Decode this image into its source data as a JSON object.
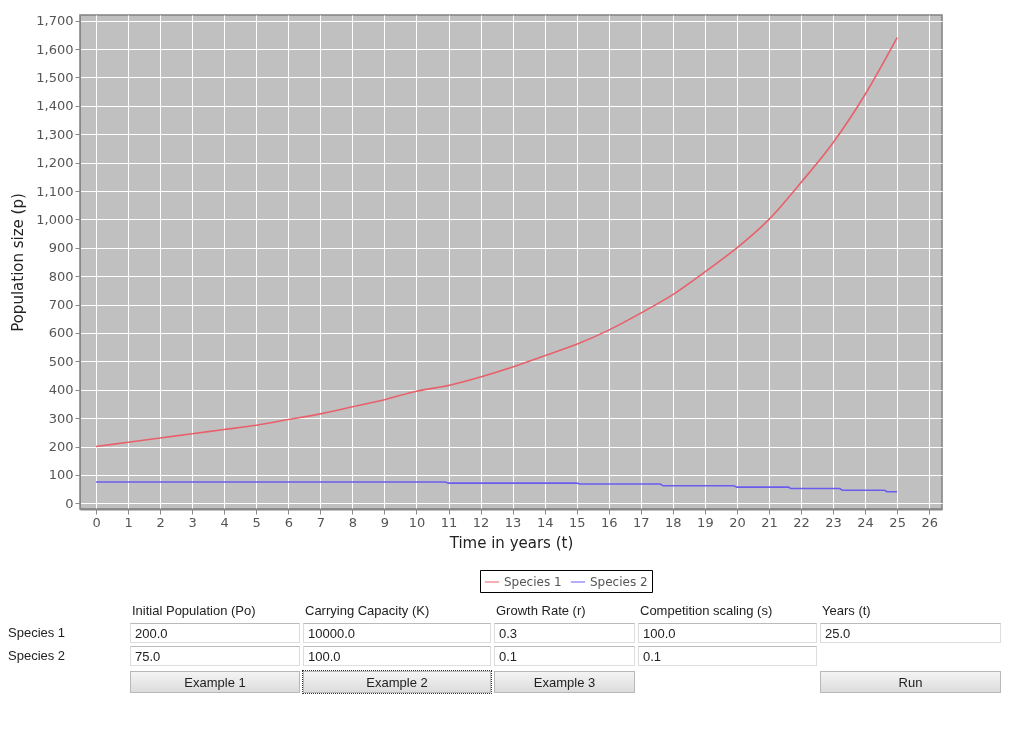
{
  "chart_data": [
    {
      "type": "line",
      "xlabel": "Time in years (t)",
      "ylabel": "Population size (p)",
      "xlim": [
        -0.5,
        26.4
      ],
      "ylim": [
        -20,
        1720
      ],
      "xticks": [
        0,
        1,
        2,
        3,
        4,
        5,
        6,
        7,
        8,
        9,
        10,
        11,
        12,
        13,
        14,
        15,
        16,
        17,
        18,
        19,
        20,
        21,
        22,
        23,
        24,
        25,
        26
      ],
      "yticks": [
        0,
        100,
        200,
        300,
        400,
        500,
        600,
        700,
        800,
        900,
        {
          "value": 1000,
          "label": "1,000"
        },
        {
          "value": 1100,
          "label": "1,100"
        },
        {
          "value": 1200,
          "label": "1,200"
        },
        {
          "value": 1300,
          "label": "1,300"
        },
        {
          "value": 1400,
          "label": "1,400"
        },
        {
          "value": 1500,
          "label": "1,500"
        },
        {
          "value": 1600,
          "label": "1,600"
        },
        {
          "value": 1700,
          "label": "1,700"
        }
      ],
      "grid": true,
      "legend": "bottom",
      "series": [
        {
          "name": "Species 1",
          "color": "#e8606a",
          "x": [
            0,
            1,
            2,
            3,
            4,
            5,
            6,
            7,
            8,
            9,
            10,
            11,
            12,
            13,
            14,
            15,
            16,
            17,
            18,
            19,
            20,
            21,
            22,
            23,
            24,
            25
          ],
          "values": [
            200,
            215,
            230,
            245,
            260,
            275,
            295,
            315,
            340,
            365,
            395,
            415,
            445,
            480,
            520,
            560,
            610,
            670,
            735,
            815,
            900,
            1000,
            1130,
            1270,
            1440,
            1640
          ]
        },
        {
          "name": "Species 2",
          "color": "#6a5cf0",
          "x": [
            0,
            10.9,
            11,
            15,
            15.1,
            17.6,
            17.7,
            19.9,
            20,
            21.6,
            21.7,
            23.2,
            23.3,
            24.6,
            24.7,
            25
          ],
          "values": [
            75,
            75,
            71,
            71,
            68,
            68,
            62,
            62,
            57,
            57,
            52,
            52,
            46,
            46,
            41,
            41
          ]
        }
      ]
    },
    {
      "type": "other",
      "categories": [
        "Initial Population (Po)",
        "Carrying Capacity (K)",
        "Growth Rate (r)",
        "Competition scaling (s)",
        "Years (t)"
      ],
      "y_categories": [
        "Species 1",
        "Species 2"
      ],
      "cell_labels": [
        [
          "200.0",
          "10000.0",
          "0.3",
          "100.0",
          "25.0"
        ],
        [
          "75.0",
          "100.0",
          "0.1",
          "0.1",
          null
        ]
      ],
      "annotations": [
        "Example 1",
        "Example 2",
        "Example 3",
        null,
        "Run"
      ]
    }
  ]
}
